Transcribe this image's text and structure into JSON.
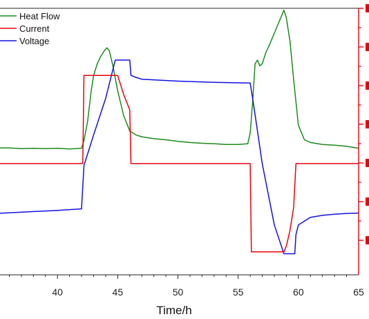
{
  "chart_data": {
    "type": "line",
    "title": "",
    "xlabel": "Time/h",
    "ylabel_left": "",
    "ylabel_right": "",
    "xlim": [
      35,
      65
    ],
    "xticks": [
      40,
      45,
      50,
      55,
      60,
      65
    ],
    "grid": false,
    "legend_position": "top-left",
    "right_axis_color": "#e8000b",
    "series": [
      {
        "name": "Heat Flow",
        "color": "#1a8a1a",
        "x": [
          35,
          36,
          37,
          38,
          39,
          40,
          41,
          42,
          42.2,
          42.5,
          42.8,
          43,
          43.3,
          43.6,
          43.9,
          44.1,
          44.3,
          44.6,
          45,
          45.5,
          46,
          46.5,
          47,
          48,
          49,
          50,
          51,
          52,
          53,
          54,
          55,
          55.8,
          56,
          56.2,
          56.4,
          56.6,
          56.8,
          57,
          57.3,
          57.6,
          58,
          58.4,
          58.8,
          59,
          59.3,
          59.6,
          60,
          60.5,
          61,
          62,
          63,
          64,
          65
        ],
        "y": [
          0.41,
          0.41,
          0.39,
          0.4,
          0.39,
          0.4,
          0.38,
          0.4,
          0.6,
          1.1,
          1.9,
          2.3,
          2.6,
          2.8,
          2.95,
          3.02,
          2.95,
          2.55,
          1.9,
          1.25,
          0.85,
          0.75,
          0.7,
          0.65,
          0.62,
          0.58,
          0.55,
          0.53,
          0.52,
          0.5,
          0.5,
          0.52,
          0.8,
          1.6,
          2.6,
          2.7,
          2.55,
          2.6,
          2.9,
          3.1,
          3.4,
          3.7,
          4.0,
          3.8,
          3.2,
          2.2,
          1.0,
          0.62,
          0.55,
          0.5,
          0.48,
          0.45,
          0.4
        ]
      },
      {
        "name": "Current",
        "color": "#e8000b",
        "x": [
          35,
          42.1,
          42.2,
          45,
          45.5,
          46,
          46.1,
          56,
          56.1,
          58.8,
          59,
          59.3,
          59.6,
          59.8,
          65
        ],
        "y": [
          0,
          0,
          2.3,
          2.3,
          1.8,
          1.4,
          0,
          0,
          -2.3,
          -2.3,
          -2.15,
          -1.75,
          -1.15,
          0,
          0
        ],
        "step": true
      },
      {
        "name": "Voltage",
        "color": "#1010e0",
        "x": [
          35,
          38,
          40,
          42,
          42.2,
          43,
          44,
          44.8,
          45.3,
          45.5,
          46,
          46.1,
          46.5,
          47,
          50,
          53,
          56,
          56.3,
          57,
          58,
          58.8,
          59.7,
          59.8,
          60,
          61,
          62,
          63,
          64,
          65
        ],
        "y": [
          -1.3,
          -1.25,
          -1.22,
          -1.18,
          -0.05,
          0.75,
          1.7,
          2.7,
          2.7,
          2.7,
          2.7,
          2.3,
          2.25,
          2.2,
          2.15,
          2.12,
          2.1,
          1.5,
          0.0,
          -1.6,
          -2.35,
          -2.35,
          -1.85,
          -1.6,
          -1.4,
          -1.35,
          -1.32,
          -1.3,
          -1.29
        ]
      }
    ]
  }
}
